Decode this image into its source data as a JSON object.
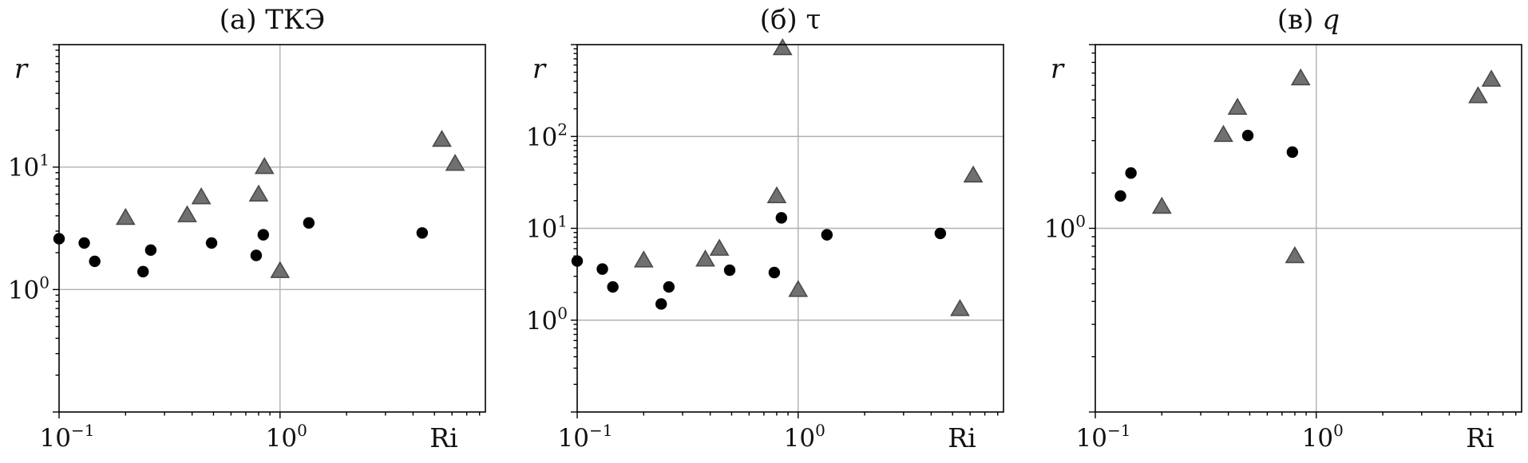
{
  "chart_data": [
    {
      "type": "scatter",
      "title": "(а) ТКЭ",
      "xlabel": "Ri",
      "ylabel": "r",
      "xscale": "log",
      "yscale": "log",
      "xlim": [
        0.1,
        8.5
      ],
      "ylim": [
        0.1,
        100
      ],
      "grid": true,
      "x_ticks": [
        {
          "exp": "−1",
          "value": 0.1
        },
        {
          "exp": "0",
          "value": 1
        }
      ],
      "y_ticks": [
        {
          "exp": "0",
          "value": 1
        },
        {
          "exp": "1",
          "value": 10
        }
      ],
      "series": [
        {
          "marker": "circle",
          "color": "#000000",
          "points": [
            [
              0.1,
              2.6
            ],
            [
              0.13,
              2.4
            ],
            [
              0.145,
              1.7
            ],
            [
              0.24,
              1.4
            ],
            [
              0.26,
              2.1
            ],
            [
              0.49,
              2.4
            ],
            [
              0.78,
              1.9
            ],
            [
              0.84,
              2.8
            ],
            [
              1.35,
              3.5
            ],
            [
              4.4,
              2.9
            ]
          ]
        },
        {
          "marker": "triangle",
          "color": "#707070",
          "points": [
            [
              0.2,
              3.8
            ],
            [
              0.38,
              4.0
            ],
            [
              0.44,
              5.6
            ],
            [
              0.8,
              5.9
            ],
            [
              0.85,
              9.9
            ],
            [
              1.0,
              1.4
            ],
            [
              5.4,
              16.5
            ],
            [
              6.2,
              10.5
            ]
          ]
        }
      ]
    },
    {
      "type": "scatter",
      "title": "(б) τ",
      "xlabel": "Ri",
      "ylabel": "r",
      "xscale": "log",
      "yscale": "log",
      "xlim": [
        0.1,
        8.5
      ],
      "ylim": [
        0.1,
        1000
      ],
      "grid": true,
      "x_ticks": [
        {
          "exp": "−1",
          "value": 0.1
        },
        {
          "exp": "0",
          "value": 1
        }
      ],
      "y_ticks": [
        {
          "exp": "0",
          "value": 1
        },
        {
          "exp": "1",
          "value": 10
        },
        {
          "exp": "2",
          "value": 100
        }
      ],
      "series": [
        {
          "marker": "circle",
          "color": "#000000",
          "points": [
            [
              0.1,
              4.4
            ],
            [
              0.13,
              3.6
            ],
            [
              0.145,
              2.3
            ],
            [
              0.24,
              1.5
            ],
            [
              0.26,
              2.3
            ],
            [
              0.49,
              3.5
            ],
            [
              0.78,
              3.3
            ],
            [
              0.84,
              13.0
            ],
            [
              1.35,
              8.5
            ],
            [
              4.4,
              8.8
            ]
          ]
        },
        {
          "marker": "triangle",
          "color": "#707070",
          "points": [
            [
              0.2,
              4.4
            ],
            [
              0.38,
              4.5
            ],
            [
              0.44,
              5.9
            ],
            [
              0.8,
              22.0
            ],
            [
              0.85,
              900.0
            ],
            [
              1.0,
              2.1
            ],
            [
              5.4,
              1.3
            ],
            [
              6.2,
              37.0
            ]
          ]
        }
      ]
    },
    {
      "type": "scatter",
      "title": "(в) q",
      "xlabel": "Ri",
      "ylabel": "r",
      "xscale": "log",
      "yscale": "log",
      "xlim": [
        0.1,
        8.5
      ],
      "ylim": [
        0.1,
        10
      ],
      "grid": true,
      "x_ticks": [
        {
          "exp": "−1",
          "value": 0.1
        },
        {
          "exp": "0",
          "value": 1
        }
      ],
      "y_ticks": [
        {
          "exp": "0",
          "value": 1
        }
      ],
      "series": [
        {
          "marker": "circle",
          "color": "#000000",
          "points": [
            [
              0.13,
              1.5
            ],
            [
              0.145,
              2.0
            ],
            [
              0.49,
              3.2
            ],
            [
              0.78,
              2.6
            ]
          ]
        },
        {
          "marker": "triangle",
          "color": "#707070",
          "points": [
            [
              0.2,
              1.3
            ],
            [
              0.38,
              3.2
            ],
            [
              0.44,
              4.5
            ],
            [
              0.8,
              0.7
            ],
            [
              0.85,
              6.5
            ],
            [
              5.4,
              5.2
            ],
            [
              6.2,
              6.4
            ]
          ]
        }
      ]
    }
  ]
}
